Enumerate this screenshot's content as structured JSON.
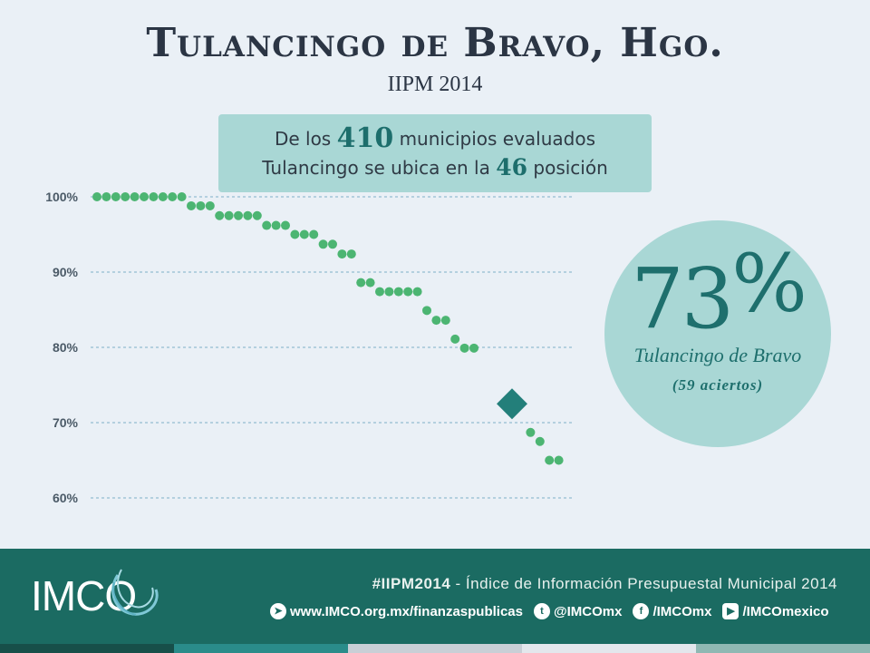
{
  "header": {
    "title": "Tulancingo de Bravo, Hgo.",
    "subtitle": "IIPM 2014"
  },
  "callout": {
    "line1_pre": "De los ",
    "line1_num": "410",
    "line1_post": " municipios evaluados",
    "line2_pre": "Tulancingo se ubica en la ",
    "line2_num": "46",
    "line2_post": " posición"
  },
  "bubble": {
    "value": "73",
    "unit": "%",
    "name": "Tulancingo de Bravo",
    "hits": "(59 aciertos)"
  },
  "colors": {
    "dots": "#4cb572",
    "highlight": "#237f7a",
    "grid": "#7fb0c8",
    "footer": "#1b6b62",
    "bubble": "#a9d7d5",
    "stripes": [
      "#174f49",
      "#2a8c8a",
      "#c9cfd6",
      "#e3e7ec",
      "#8fb8b3"
    ]
  },
  "footer": {
    "logo": "IMCO",
    "hashtag": "#IIPM2014",
    "tagline": " - Índice de Información Presupuestal Municipal 2014",
    "website": "www.IMCO.org.mx/finanzaspublicas",
    "twitter": "@IMCOmx",
    "facebook": "/IMCOmx",
    "youtube": "/IMCOmexico"
  },
  "chart_data": {
    "type": "scatter",
    "title": "",
    "xlabel": "",
    "ylabel": "",
    "ylim": [
      58,
      102
    ],
    "yticks": [
      100,
      90,
      80,
      70,
      60
    ],
    "ytick_labels": [
      "100%",
      "90%",
      "80%",
      "70%",
      "60%"
    ],
    "grid": true,
    "series": [
      {
        "x": [
          1,
          2,
          3,
          4,
          5,
          6,
          7,
          8,
          9,
          10,
          11,
          12,
          13,
          14,
          15,
          16,
          17,
          18,
          19,
          20,
          21,
          22,
          23,
          24,
          25,
          26,
          27,
          28,
          29,
          30,
          31,
          32,
          33,
          34,
          35,
          36,
          37,
          38,
          39,
          40,
          41,
          42,
          43,
          44,
          45,
          47,
          48,
          49,
          50
        ],
        "values": [
          100,
          100,
          100,
          100,
          100,
          100,
          100,
          100,
          100,
          100,
          98.8,
          98.8,
          98.8,
          97.5,
          97.5,
          97.5,
          97.5,
          97.5,
          96.2,
          96.2,
          96.2,
          95,
          95,
          95,
          93.7,
          93.7,
          92.4,
          92.4,
          88.6,
          88.6,
          87.4,
          87.4,
          87.4,
          87.4,
          87.4,
          84.9,
          83.6,
          83.6,
          81.1,
          79.9,
          79.9,
          null,
          null,
          null,
          null,
          68.7,
          67.5,
          65,
          65
        ]
      },
      {
        "name": "Tulancingo de Bravo",
        "x": [
          46
        ],
        "values": [
          72.5
        ]
      }
    ]
  }
}
